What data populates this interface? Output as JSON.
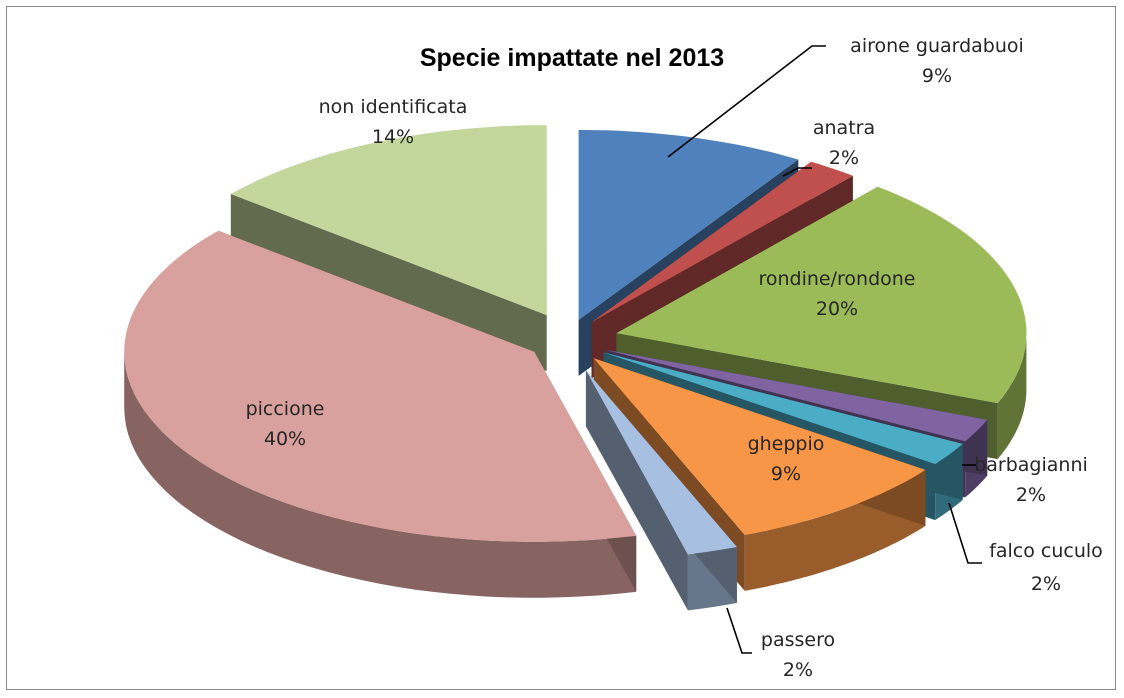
{
  "chart_data": {
    "type": "pie",
    "title": "Specie impattate nel 2013",
    "style": "3d-exploded",
    "slices": [
      {
        "name": "airone guardabuoi",
        "value": 9,
        "label": "9%",
        "color": "#4f81bd"
      },
      {
        "name": "anatra",
        "value": 2,
        "label": "2%",
        "color": "#c0504d"
      },
      {
        "name": "rondine/rondone",
        "value": 20,
        "label": "20%",
        "color": "#9bbb59"
      },
      {
        "name": "barbagianni",
        "value": 2,
        "label": "2%",
        "color": "#8064a2"
      },
      {
        "name": "falco cuculo",
        "value": 2,
        "label": "2%",
        "color": "#4bacc6"
      },
      {
        "name": "gheppio",
        "value": 9,
        "label": "9%",
        "color": "#f79646"
      },
      {
        "name": "passero",
        "value": 2,
        "label": "2%",
        "color": "#a7bfe0"
      },
      {
        "name": "piccione",
        "value": 40,
        "label": "40%",
        "color": "#d9a19e"
      },
      {
        "name": "non identificata",
        "value": 14,
        "label": "14%",
        "color": "#c3d69b"
      }
    ]
  }
}
